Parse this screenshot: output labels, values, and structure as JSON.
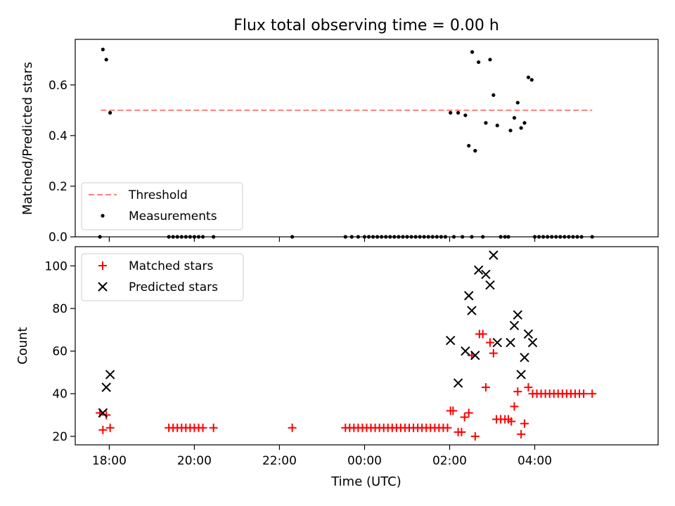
{
  "chart_data": [
    {
      "type": "scatter",
      "title": "Flux total observing time = 0.00 h",
      "xlabel": "",
      "ylabel": "Matched/Predicted stars",
      "x_time_hours_since_midnight_prev_day": true,
      "xlim": [
        17.2,
        30.9
      ],
      "ylim": [
        0,
        0.78
      ],
      "yticks": [
        0.0,
        0.2,
        0.4,
        0.6
      ],
      "yticklabels": [
        "0.0",
        "0.2",
        "0.4",
        "0.6"
      ],
      "threshold": {
        "name": "Threshold",
        "value": 0.5,
        "x_range": [
          17.8,
          29.35
        ],
        "color": "#ff7f7f"
      },
      "legend": {
        "position": "lower-left",
        "entries": [
          "Threshold",
          "Measurements"
        ]
      },
      "series": [
        {
          "name": "Measurements",
          "color": "#000000",
          "points": [
            [
              17.78,
              0.0
            ],
            [
              17.85,
              0.74
            ],
            [
              17.93,
              0.7
            ],
            [
              18.02,
              0.49
            ],
            [
              19.4,
              0.0
            ],
            [
              19.5,
              0.0
            ],
            [
              19.6,
              0.0
            ],
            [
              19.7,
              0.0
            ],
            [
              19.8,
              0.0
            ],
            [
              19.9,
              0.0
            ],
            [
              20.0,
              0.0
            ],
            [
              20.1,
              0.0
            ],
            [
              20.2,
              0.0
            ],
            [
              20.45,
              0.0
            ],
            [
              22.3,
              0.0
            ],
            [
              23.55,
              0.0
            ],
            [
              23.7,
              0.0
            ],
            [
              23.85,
              0.0
            ],
            [
              24.0,
              0.0
            ],
            [
              24.1,
              0.0
            ],
            [
              24.2,
              0.0
            ],
            [
              24.3,
              0.0
            ],
            [
              24.4,
              0.0
            ],
            [
              24.5,
              0.0
            ],
            [
              24.6,
              0.0
            ],
            [
              24.7,
              0.0
            ],
            [
              24.8,
              0.0
            ],
            [
              24.9,
              0.0
            ],
            [
              25.0,
              0.0
            ],
            [
              25.1,
              0.0
            ],
            [
              25.2,
              0.0
            ],
            [
              25.3,
              0.0
            ],
            [
              25.4,
              0.0
            ],
            [
              25.5,
              0.0
            ],
            [
              25.6,
              0.0
            ],
            [
              25.7,
              0.0
            ],
            [
              25.8,
              0.0
            ],
            [
              25.9,
              0.0
            ],
            [
              26.02,
              0.49
            ],
            [
              26.1,
              0.0
            ],
            [
              26.2,
              0.49
            ],
            [
              26.3,
              0.0
            ],
            [
              26.37,
              0.48
            ],
            [
              26.45,
              0.36
            ],
            [
              26.52,
              0.0
            ],
            [
              26.53,
              0.73
            ],
            [
              26.6,
              0.34
            ],
            [
              26.68,
              0.69
            ],
            [
              26.78,
              0.0
            ],
            [
              26.85,
              0.45
            ],
            [
              26.95,
              0.7
            ],
            [
              27.03,
              0.56
            ],
            [
              27.12,
              0.44
            ],
            [
              27.2,
              0.0
            ],
            [
              27.3,
              0.0
            ],
            [
              27.38,
              0.0
            ],
            [
              27.43,
              0.42
            ],
            [
              27.52,
              0.47
            ],
            [
              27.6,
              0.53
            ],
            [
              27.68,
              0.43
            ],
            [
              27.76,
              0.45
            ],
            [
              27.85,
              0.63
            ],
            [
              27.93,
              0.62
            ],
            [
              28.0,
              0.0
            ],
            [
              28.1,
              0.0
            ],
            [
              28.2,
              0.0
            ],
            [
              28.3,
              0.0
            ],
            [
              28.4,
              0.0
            ],
            [
              28.5,
              0.0
            ],
            [
              28.6,
              0.0
            ],
            [
              28.7,
              0.0
            ],
            [
              28.8,
              0.0
            ],
            [
              28.9,
              0.0
            ],
            [
              29.0,
              0.0
            ],
            [
              29.1,
              0.0
            ],
            [
              29.35,
              0.0
            ]
          ]
        }
      ]
    },
    {
      "type": "scatter",
      "title": "",
      "xlabel": "Time (UTC)",
      "ylabel": "Count",
      "xlim": [
        17.2,
        30.9
      ],
      "ylim": [
        16,
        109
      ],
      "yticks": [
        20,
        40,
        60,
        80,
        100
      ],
      "yticklabels": [
        "20",
        "40",
        "60",
        "80",
        "100"
      ],
      "xticks": [
        18,
        20,
        22,
        24,
        26,
        28
      ],
      "xticklabels": [
        "18:00",
        "20:00",
        "22:00",
        "00:00",
        "02:00",
        "04:00"
      ],
      "legend": {
        "position": "upper-left",
        "entries": [
          "Matched stars",
          "Predicted stars"
        ]
      },
      "series": [
        {
          "name": "Matched stars",
          "color": "#ff0000",
          "marker": "+",
          "points": [
            [
              17.78,
              31
            ],
            [
              17.85,
              23
            ],
            [
              17.93,
              30
            ],
            [
              18.02,
              24
            ],
            [
              19.4,
              24
            ],
            [
              19.5,
              24
            ],
            [
              19.6,
              24
            ],
            [
              19.7,
              24
            ],
            [
              19.8,
              24
            ],
            [
              19.9,
              24
            ],
            [
              20.0,
              24
            ],
            [
              20.1,
              24
            ],
            [
              20.2,
              24
            ],
            [
              20.45,
              24
            ],
            [
              22.3,
              24
            ],
            [
              23.55,
              24
            ],
            [
              23.65,
              24
            ],
            [
              23.75,
              24
            ],
            [
              23.85,
              24
            ],
            [
              23.95,
              24
            ],
            [
              24.05,
              24
            ],
            [
              24.15,
              24
            ],
            [
              24.25,
              24
            ],
            [
              24.35,
              24
            ],
            [
              24.45,
              24
            ],
            [
              24.55,
              24
            ],
            [
              24.65,
              24
            ],
            [
              24.75,
              24
            ],
            [
              24.85,
              24
            ],
            [
              24.95,
              24
            ],
            [
              25.05,
              24
            ],
            [
              25.15,
              24
            ],
            [
              25.25,
              24
            ],
            [
              25.35,
              24
            ],
            [
              25.45,
              24
            ],
            [
              25.55,
              24
            ],
            [
              25.65,
              24
            ],
            [
              25.75,
              24
            ],
            [
              25.85,
              24
            ],
            [
              25.95,
              24
            ],
            [
              26.02,
              32
            ],
            [
              26.08,
              32
            ],
            [
              26.2,
              22
            ],
            [
              26.28,
              22
            ],
            [
              26.35,
              29
            ],
            [
              26.45,
              31
            ],
            [
              26.52,
              58
            ],
            [
              26.6,
              20
            ],
            [
              26.7,
              68
            ],
            [
              26.78,
              68
            ],
            [
              26.85,
              43
            ],
            [
              26.95,
              64
            ],
            [
              27.03,
              59
            ],
            [
              27.1,
              28
            ],
            [
              27.2,
              28
            ],
            [
              27.3,
              28
            ],
            [
              27.38,
              28
            ],
            [
              27.45,
              27
            ],
            [
              27.52,
              34
            ],
            [
              27.6,
              41
            ],
            [
              27.68,
              21
            ],
            [
              27.76,
              26
            ],
            [
              27.85,
              43
            ],
            [
              27.95,
              40
            ],
            [
              28.05,
              40
            ],
            [
              28.15,
              40
            ],
            [
              28.25,
              40
            ],
            [
              28.35,
              40
            ],
            [
              28.45,
              40
            ],
            [
              28.55,
              40
            ],
            [
              28.65,
              40
            ],
            [
              28.75,
              40
            ],
            [
              28.85,
              40
            ],
            [
              28.95,
              40
            ],
            [
              29.05,
              40
            ],
            [
              29.15,
              40
            ],
            [
              29.35,
              40
            ]
          ]
        },
        {
          "name": "Predicted stars",
          "color": "#000000",
          "marker": "x",
          "points": [
            [
              17.85,
              31
            ],
            [
              17.93,
              43
            ],
            [
              18.02,
              49
            ],
            [
              26.02,
              65
            ],
            [
              26.2,
              45
            ],
            [
              26.37,
              60
            ],
            [
              26.45,
              86
            ],
            [
              26.52,
              79
            ],
            [
              26.6,
              58
            ],
            [
              26.68,
              98
            ],
            [
              26.85,
              96
            ],
            [
              26.95,
              91
            ],
            [
              27.03,
              105
            ],
            [
              27.12,
              64
            ],
            [
              27.43,
              64
            ],
            [
              27.52,
              72
            ],
            [
              27.6,
              77
            ],
            [
              27.68,
              49
            ],
            [
              27.76,
              57
            ],
            [
              27.85,
              68
            ],
            [
              27.95,
              64
            ]
          ]
        }
      ]
    }
  ]
}
